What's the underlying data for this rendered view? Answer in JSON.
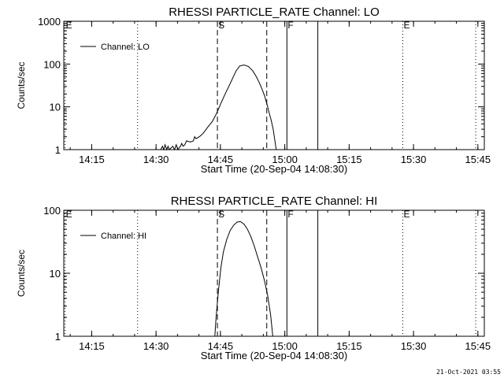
{
  "footer": {
    "stamp": "21-Oct-2021 03:55"
  },
  "chart_data": [
    {
      "type": "line",
      "title": "RHESSI PARTICLE_RATE Channel: LO",
      "xlabel": "Start Time (20-Sep-04 14:08:30)",
      "ylabel": "Counts/sec",
      "x_unit": "minutes after 14:08:30",
      "xlim": [
        0,
        98
      ],
      "ylim": [
        1,
        1000
      ],
      "yscale": "log",
      "x_ticks": [
        {
          "at": 6.5,
          "label": "14:15"
        },
        {
          "at": 21.5,
          "label": "14:30"
        },
        {
          "at": 36.5,
          "label": "14:45"
        },
        {
          "at": 51.5,
          "label": "15:00"
        },
        {
          "at": 66.5,
          "label": "15:15"
        },
        {
          "at": 81.5,
          "label": "15:30"
        },
        {
          "at": 96.5,
          "label": "15:45"
        }
      ],
      "y_ticks": [
        {
          "at": 1,
          "label": "1"
        },
        {
          "at": 10,
          "label": "10"
        },
        {
          "at": 100,
          "label": "100"
        },
        {
          "at": 1000,
          "label": "1000"
        }
      ],
      "legend": {
        "label": "Channel: LO",
        "placement": "top-left"
      },
      "markers": [
        {
          "label": "E",
          "x": 0.3,
          "style": "dotted"
        },
        {
          "x": 17.2,
          "style": "dotted"
        },
        {
          "label": "S",
          "x": 35.8,
          "style": "dashed"
        },
        {
          "x": 47.3,
          "style": "dashed"
        },
        {
          "label": "F",
          "x": 52.0,
          "style": "solid"
        },
        {
          "x": 59.2,
          "style": "solid"
        },
        {
          "label": "E",
          "x": 79.0,
          "style": "dotted"
        },
        {
          "x": 96.0,
          "style": "dotted"
        }
      ],
      "series": [
        {
          "x": [
            22.6,
            23.0,
            23.3,
            23.6,
            24.0,
            24.3,
            24.6,
            25.4,
            25.8,
            26.2,
            26.6,
            27.2,
            27.5,
            27.8,
            28.2,
            28.6,
            29.5,
            30.2,
            30.5,
            30.8,
            31.6,
            32.3,
            32.6,
            33.2,
            33.6,
            34.6,
            35.6,
            36.6,
            37.6,
            38.6,
            39.5,
            40.2,
            41.0,
            42.0,
            43.0,
            44.0,
            44.8,
            45.5,
            46.2,
            46.8,
            47.4,
            47.9,
            48.3,
            48.8,
            49.2,
            49.5
          ],
          "y": [
            1,
            1.2,
            1,
            1.3,
            1,
            1.2,
            1,
            1.2,
            1,
            1.3,
            1,
            1.2,
            1.4,
            1.2,
            1.3,
            1.6,
            1.5,
            1.6,
            2.0,
            1.8,
            2.0,
            2.3,
            2.5,
            3.0,
            3.4,
            4.5,
            7,
            12,
            20,
            32,
            50,
            70,
            90,
            95,
            88,
            70,
            52,
            38,
            26,
            18,
            11,
            7,
            5,
            3,
            1.6,
            1
          ]
        }
      ]
    },
    {
      "type": "line",
      "title": "RHESSI PARTICLE_RATE Channel: HI",
      "xlabel": "Start Time (20-Sep-04 14:08:30)",
      "ylabel": "Counts/sec",
      "x_unit": "minutes after 14:08:30",
      "xlim": [
        0,
        98
      ],
      "ylim": [
        1,
        100
      ],
      "yscale": "log",
      "x_ticks": [
        {
          "at": 6.5,
          "label": "14:15"
        },
        {
          "at": 21.5,
          "label": "14:30"
        },
        {
          "at": 36.5,
          "label": "14:45"
        },
        {
          "at": 51.5,
          "label": "15:00"
        },
        {
          "at": 66.5,
          "label": "15:15"
        },
        {
          "at": 81.5,
          "label": "15:30"
        },
        {
          "at": 96.5,
          "label": "15:45"
        }
      ],
      "y_ticks": [
        {
          "at": 1,
          "label": "1"
        },
        {
          "at": 10,
          "label": "10"
        },
        {
          "at": 100,
          "label": "100"
        }
      ],
      "legend": {
        "label": "Channel: HI",
        "placement": "top-left"
      },
      "markers": [
        {
          "label": "E",
          "x": 0.3,
          "style": "dotted"
        },
        {
          "x": 17.2,
          "style": "dotted"
        },
        {
          "label": "S",
          "x": 35.8,
          "style": "dashed"
        },
        {
          "x": 47.3,
          "style": "dashed"
        },
        {
          "label": "F",
          "x": 52.0,
          "style": "solid"
        },
        {
          "x": 59.2,
          "style": "solid"
        },
        {
          "label": "E",
          "x": 79.0,
          "style": "dotted"
        },
        {
          "x": 96.0,
          "style": "dotted"
        }
      ],
      "series": [
        {
          "x": [
            35.2,
            35.5,
            36.0,
            36.6,
            37.2,
            38.0,
            38.8,
            39.6,
            40.4,
            41.2,
            42.0,
            42.8,
            43.6,
            44.4,
            45.2,
            46.0,
            46.8,
            47.5,
            48.2,
            48.7
          ],
          "y": [
            1,
            2,
            5,
            12,
            22,
            35,
            48,
            58,
            65,
            66,
            60,
            50,
            38,
            27,
            18,
            12,
            7.5,
            4.5,
            2.2,
            1
          ]
        }
      ]
    }
  ]
}
